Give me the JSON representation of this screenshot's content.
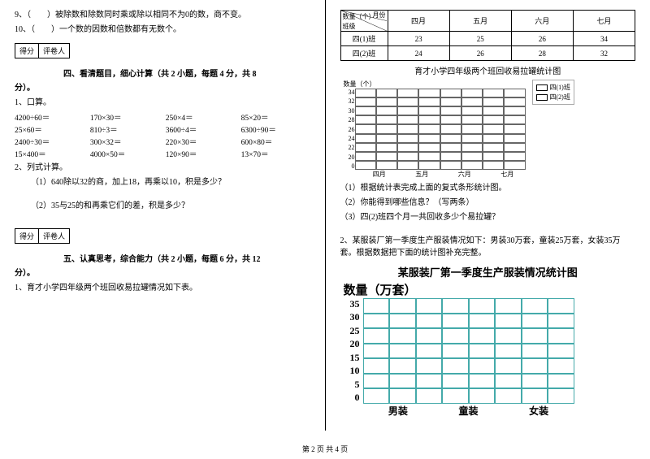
{
  "left": {
    "q9": "9、（　　）被除数和除数同时乘或除以相同不为0的数，商不变。",
    "q10": "10、（　　）一个数的因数和倍数都有无数个。",
    "score_a": "得分",
    "score_b": "评卷人",
    "sec4": "四、看清题目，细心计算（共 2 小题，每题 4 分，共 8",
    "fen": "分）。",
    "p1": "1、口算。",
    "calc": [
      "4200÷60＝",
      "170×30＝",
      "250×4＝",
      "85×20＝",
      "25×60＝",
      "810÷3＝",
      "3600÷4＝",
      "6300÷90＝",
      "2400÷30＝",
      "300×32＝",
      "220×30＝",
      "600×80＝",
      "15×400＝",
      "4000×50＝",
      "120×90＝",
      "13×70＝"
    ],
    "p2": "2、列式计算。",
    "p2a": "（1）640除以32的商，加上18，再乘以10，积是多少？",
    "p2b": "（2）35与25的和再乘它们的差，积是多少？",
    "sec5": "五、认真思考，综合能力（共 2 小题，每题 6 分，共 12",
    "p3": "1、育才小学四年级两个班回收易拉罐情况如下表。"
  },
  "right": {
    "th_diag_a": "月份",
    "th_diag_b": "数量（个）",
    "th_diag_c": "班级",
    "months": [
      "四月",
      "五月",
      "六月",
      "七月"
    ],
    "rows": [
      {
        "label": "四(1)班",
        "vals": [
          "23",
          "25",
          "26",
          "34"
        ]
      },
      {
        "label": "四(2)班",
        "vals": [
          "24",
          "26",
          "28",
          "32"
        ]
      }
    ],
    "chart1_title": "育才小学四年级两个班回收易拉罐统计图",
    "y1_top": "数量（个）",
    "y1": [
      "34",
      "32",
      "30",
      "28",
      "26",
      "24",
      "22",
      "20",
      "0"
    ],
    "x1": [
      "四月",
      "五月",
      "六月",
      "七月"
    ],
    "legend1": "四(1)班",
    "legend2": "四(2)班",
    "qa": "（1）根据统计表完成上面的复式条形统计图。",
    "qb": "（2）你能得到哪些信息？（写两条）",
    "qc": "（3）四(2)班四个月一共回收多少个易拉罐？",
    "p2": "2、某服装厂第一季度生产服装情况如下：男装30万套，童装25万套，女装35万套。根据数据把下面的统计图补充完整。",
    "chart2_title": "某服装厂第一季度生产服装情况统计图",
    "axis2": "数量（万套）",
    "y2": [
      "35",
      "30",
      "25",
      "20",
      "15",
      "10",
      "5",
      "0"
    ],
    "x2": [
      "男装",
      "童装",
      "女装"
    ]
  },
  "footer": "第 2 页 共 4 页"
}
